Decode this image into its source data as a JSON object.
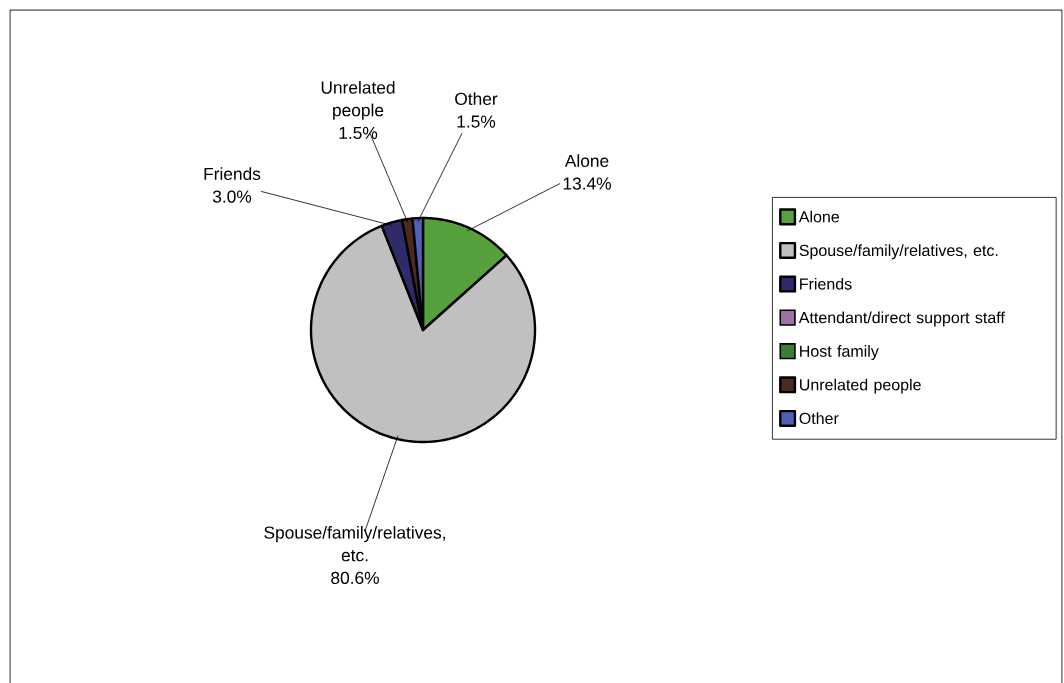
{
  "chart_data": {
    "type": "pie",
    "categories": [
      "Alone",
      "Spouse/family/relatives, etc.",
      "Friends",
      "Attendant/direct support staff",
      "Host family",
      "Unrelated people",
      "Other"
    ],
    "values": [
      13.4,
      80.6,
      3.0,
      0,
      0,
      1.5,
      1.5
    ],
    "colors": [
      "#56a03e",
      "#c0c0c0",
      "#2f2b6a",
      "#9c72a4",
      "#3f7a38",
      "#4c2a1e",
      "#5160b4"
    ],
    "value_labels": [
      "13.4%",
      "80.6%",
      "3.0%",
      null,
      null,
      "1.5%",
      "1.5%"
    ],
    "legend": "right"
  }
}
